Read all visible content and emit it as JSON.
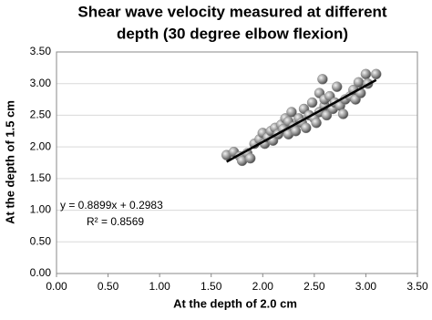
{
  "chart_data": {
    "type": "scatter",
    "title": [
      "Shear wave velocity measured at different",
      "depth (30 degree elbow flexion)"
    ],
    "x_label": "At the depth of 2.0 cm",
    "y_label": "At the depth of 1.5 cm",
    "x": [
      1.65,
      1.72,
      1.78,
      1.8,
      1.85,
      1.88,
      1.92,
      1.97,
      2.0,
      2.02,
      2.05,
      2.08,
      2.1,
      2.12,
      2.15,
      2.18,
      2.2,
      2.22,
      2.25,
      2.25,
      2.28,
      2.3,
      2.32,
      2.35,
      2.38,
      2.4,
      2.42,
      2.45,
      2.48,
      2.5,
      2.52,
      2.55,
      2.55,
      2.58,
      2.6,
      2.6,
      2.62,
      2.65,
      2.68,
      2.7,
      2.72,
      2.75,
      2.78,
      2.8,
      2.85,
      2.88,
      2.9,
      2.93,
      2.95,
      3.0,
      3.02,
      3.1
    ],
    "values": [
      1.87,
      1.92,
      1.85,
      1.78,
      1.9,
      1.82,
      2.05,
      2.12,
      2.22,
      2.05,
      2.15,
      2.25,
      2.1,
      2.3,
      2.2,
      2.35,
      2.28,
      2.45,
      2.4,
      2.2,
      2.55,
      2.32,
      2.25,
      2.45,
      2.38,
      2.6,
      2.3,
      2.5,
      2.7,
      2.45,
      2.38,
      2.55,
      2.85,
      3.07,
      2.65,
      2.75,
      2.5,
      2.8,
      2.6,
      2.7,
      2.95,
      2.65,
      2.52,
      2.75,
      2.8,
      2.9,
      2.75,
      3.02,
      2.85,
      3.15,
      3.0,
      3.15
    ],
    "color": "#8c8c8c",
    "xlim": [
      0,
      3.5
    ],
    "ylim": [
      0,
      3.5
    ],
    "xticks": [
      {
        "value": 0,
        "label": "0.00"
      },
      {
        "value": 0.5,
        "label": "0.50"
      },
      {
        "value": 1,
        "label": "1.00"
      },
      {
        "value": 1.5,
        "label": "1.50"
      },
      {
        "value": 2,
        "label": "2.00"
      },
      {
        "value": 2.5,
        "label": "2.50"
      },
      {
        "value": 3,
        "label": "3.00"
      },
      {
        "value": 3.5,
        "label": "3.50"
      }
    ],
    "yticks": [
      {
        "value": 0,
        "label": "0.00"
      },
      {
        "value": 0.5,
        "label": "0.50"
      },
      {
        "value": 1,
        "label": "1.00"
      },
      {
        "value": 1.5,
        "label": "1.50"
      },
      {
        "value": 2,
        "label": "2.00"
      },
      {
        "value": 2.5,
        "label": "2.50"
      },
      {
        "value": 3,
        "label": "3.00"
      },
      {
        "value": 3.5,
        "label": "3.50"
      }
    ],
    "grid": true,
    "trendline": {
      "slope": 0.8899,
      "intercept": 0.2983,
      "equation": "y = 0.8899x + 0.2983",
      "r2": "R² = 0.8569"
    }
  }
}
